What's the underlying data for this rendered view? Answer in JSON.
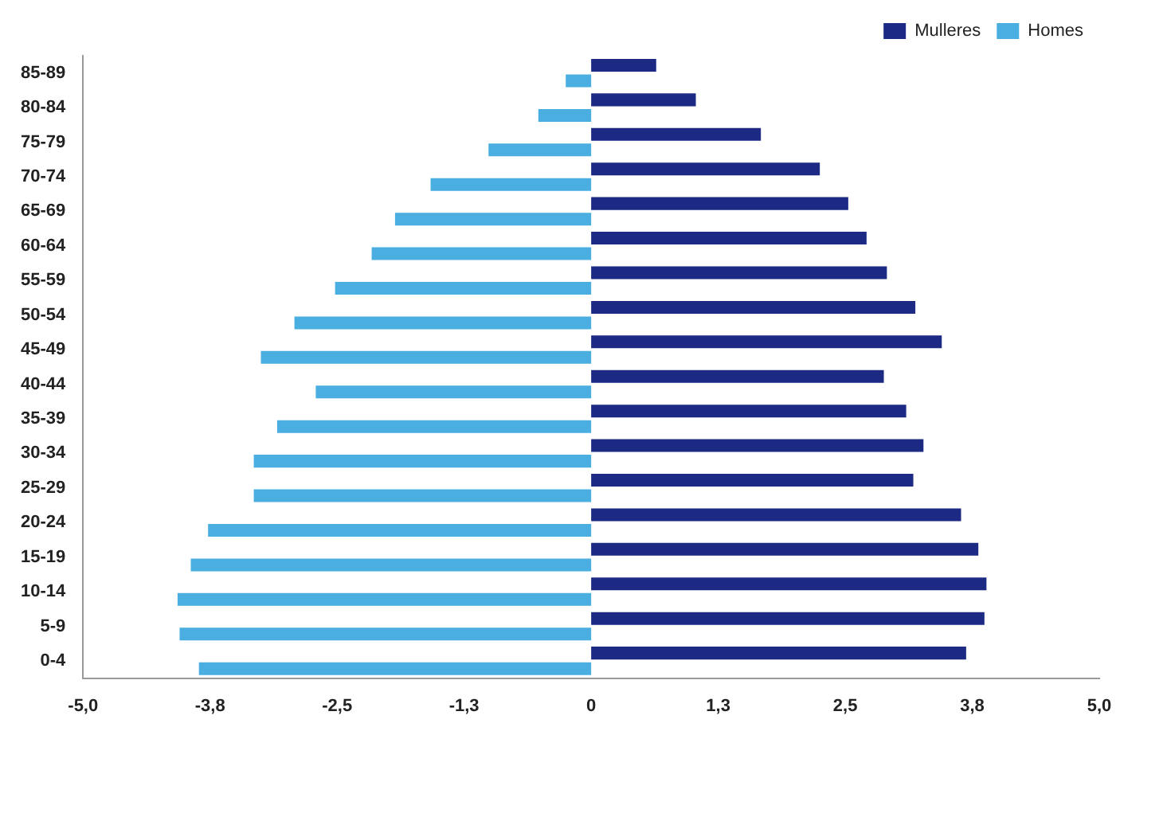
{
  "chart_data": {
    "type": "bar",
    "orientation": "horizontal",
    "categories": [
      "85-89",
      "80-84",
      "75-79",
      "70-74",
      "65-69",
      "60-64",
      "55-59",
      "50-54",
      "45-49",
      "40-44",
      "35-39",
      "30-34",
      "25-29",
      "20-24",
      "15-19",
      "10-14",
      "5-9",
      "0-4"
    ],
    "series": [
      {
        "name": "Mulleres",
        "color": "#1c2a84",
        "values": [
          0.64,
          1.03,
          1.67,
          2.25,
          2.53,
          2.71,
          2.91,
          3.19,
          3.45,
          2.88,
          3.1,
          3.27,
          3.17,
          3.64,
          3.81,
          3.89,
          3.87,
          3.69
        ]
      },
      {
        "name": "Homes",
        "color": "#4aaee0",
        "values": [
          -0.25,
          -0.52,
          -1.01,
          -1.58,
          -1.93,
          -2.16,
          -2.52,
          -2.92,
          -3.25,
          -2.71,
          -3.09,
          -3.32,
          -3.32,
          -3.77,
          -3.94,
          -4.07,
          -4.05,
          -3.86
        ]
      }
    ],
    "xlim": [
      -5,
      5
    ],
    "xticks": [
      {
        "value": -5,
        "label": "-5,0"
      },
      {
        "value": -3.75,
        "label": "-3,8"
      },
      {
        "value": -2.5,
        "label": "-2,5"
      },
      {
        "value": -1.25,
        "label": "-1,3"
      },
      {
        "value": 0,
        "label": "0"
      },
      {
        "value": 1.25,
        "label": "1,3"
      },
      {
        "value": 2.5,
        "label": "2,5"
      },
      {
        "value": 3.75,
        "label": "3,8"
      },
      {
        "value": 5,
        "label": "5,0"
      }
    ],
    "grid": false,
    "legend": "top right"
  }
}
